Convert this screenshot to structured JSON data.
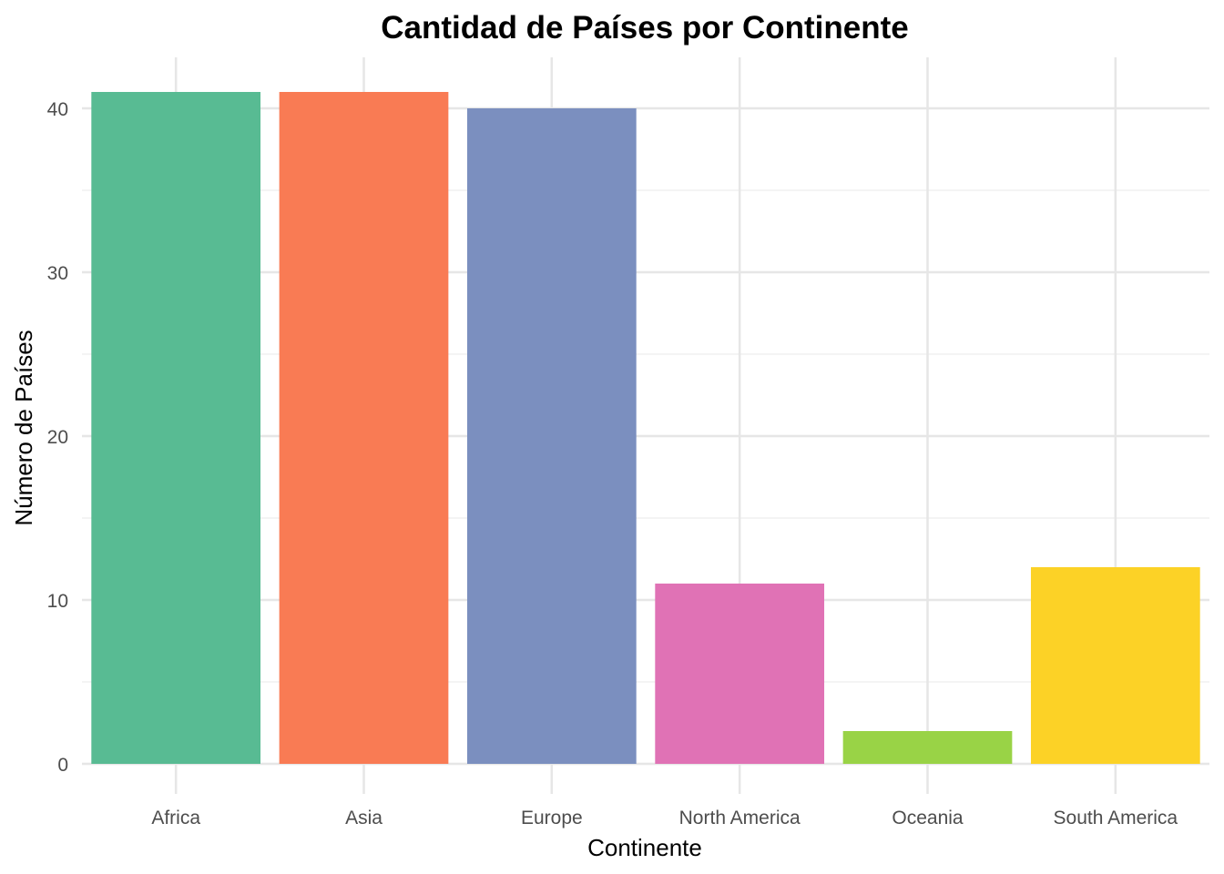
{
  "chart_data": {
    "type": "bar",
    "title": "Cantidad de Países por Continente",
    "xlabel": "Continente",
    "ylabel": "Número de Países",
    "categories": [
      "Africa",
      "Asia",
      "Europe",
      "North America",
      "Oceania",
      "South America"
    ],
    "values": [
      41,
      41,
      40,
      11,
      2,
      12
    ],
    "colors": [
      "#58BB93",
      "#F97B54",
      "#7B8FBF",
      "#E072B5",
      "#99D346",
      "#FCD226"
    ],
    "ylim": [
      0,
      43
    ],
    "yticks": [
      0,
      10,
      20,
      30,
      40
    ],
    "ytick_labels": [
      "0",
      "10",
      "20",
      "30",
      "40"
    ],
    "grid": true,
    "legend": "none"
  },
  "colors": {
    "grid_major": "#e6e6e6",
    "grid_minor": "#f0f0f0",
    "tick_text": "#4d4d4d",
    "title_text": "#000000"
  }
}
